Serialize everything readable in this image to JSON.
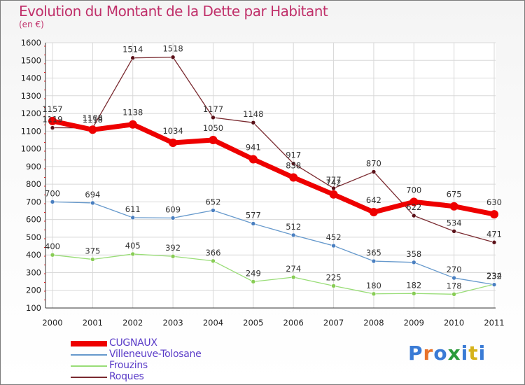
{
  "title": "Evolution du Montant de la Dette par Habitant",
  "unit": "(en €)",
  "logo": {
    "text": "Proxiti",
    "colors": [
      "#3a7bd5",
      "#e8732a",
      "#3a7bd5",
      "#2a9a3a",
      "#3a7bd5",
      "#d6b21a",
      "#3a7bd5"
    ]
  },
  "chart_data": {
    "type": "line",
    "categories": [
      "2000",
      "2001",
      "2002",
      "2003",
      "2004",
      "2005",
      "2006",
      "2007",
      "2008",
      "2009",
      "2010",
      "2011"
    ],
    "ylim": [
      100,
      1600
    ],
    "yticks": [
      100,
      200,
      300,
      400,
      500,
      600,
      700,
      800,
      900,
      1000,
      1100,
      1200,
      1300,
      1400,
      1500,
      1600
    ],
    "grid": true,
    "legend_position": "bottom-left",
    "series": [
      {
        "name": "Roques",
        "color": "#7a2a30",
        "marker": "#5a1018",
        "width": 1.3,
        "r": 3,
        "values": [
          1119,
          1118,
          1514,
          1518,
          1177,
          1148,
          917,
          777,
          870,
          622,
          534,
          471
        ]
      },
      {
        "name": "Frouzins",
        "color": "#99dd77",
        "marker": "#88cc55",
        "width": 1.3,
        "r": 3,
        "values": [
          400,
          375,
          405,
          392,
          366,
          249,
          274,
          225,
          180,
          182,
          178,
          234
        ]
      },
      {
        "name": "Villeneuve-Tolosane",
        "color": "#6699cc",
        "marker": "#4a7fc0",
        "width": 1.3,
        "r": 3,
        "values": [
          700,
          694,
          611,
          609,
          652,
          577,
          512,
          452,
          365,
          358,
          270,
          232
        ]
      },
      {
        "name": "CUGNAUX",
        "color": "#ee0000",
        "marker": "#ee0000",
        "width": 7,
        "r": 6,
        "values": [
          1157,
          1108,
          1138,
          1034,
          1050,
          941,
          838,
          742,
          642,
          700,
          675,
          630
        ]
      }
    ]
  }
}
